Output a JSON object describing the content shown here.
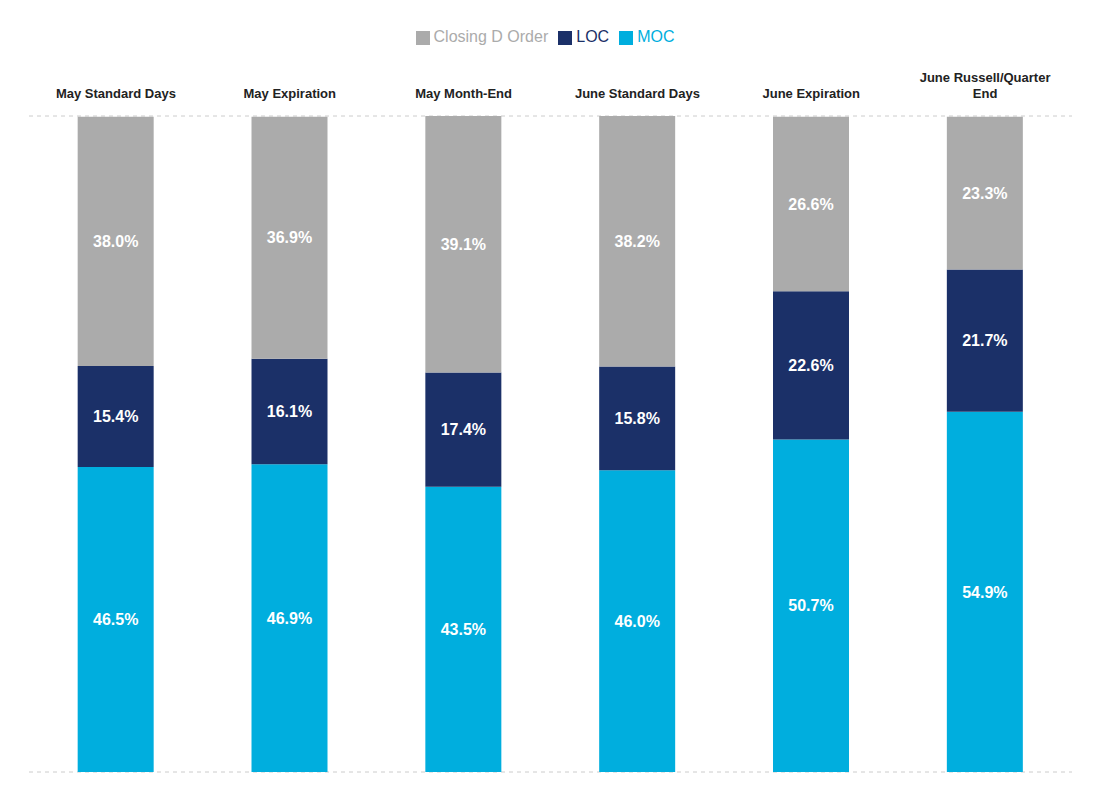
{
  "chart_data": {
    "type": "bar",
    "stacked": true,
    "categories": [
      "May Standard Days",
      "May Expiration",
      "May Month-End",
      "June Standard Days",
      "June Expiration",
      "June Russell/Quarter\nEnd"
    ],
    "series": [
      {
        "name": "MOC",
        "color": "#00AEDE",
        "values": [
          46.5,
          46.9,
          43.5,
          46.0,
          50.7,
          54.9
        ],
        "value_labels": [
          "46.5%",
          "46.9%",
          "43.5%",
          "46.0%",
          "50.7%",
          "54.9%"
        ]
      },
      {
        "name": "LOC",
        "color": "#1B3068",
        "values": [
          15.4,
          16.1,
          17.4,
          15.8,
          22.6,
          21.7
        ],
        "value_labels": [
          "15.4%",
          "16.1%",
          "17.4%",
          "15.8%",
          "22.6%",
          "21.7%"
        ]
      },
      {
        "name": "Closing D Order",
        "color": "#ABABAB",
        "values": [
          38.0,
          36.9,
          39.1,
          38.2,
          26.6,
          23.3
        ],
        "value_labels": [
          "38.0%",
          "36.9%",
          "39.1%",
          "38.2%",
          "26.6%",
          "23.3%"
        ]
      }
    ],
    "ylim": [
      0,
      100
    ],
    "yticks": [
      0,
      20,
      40,
      60,
      80,
      100
    ],
    "grid": true,
    "legend": "top",
    "data_labels": true,
    "tick_labels": "x"
  }
}
